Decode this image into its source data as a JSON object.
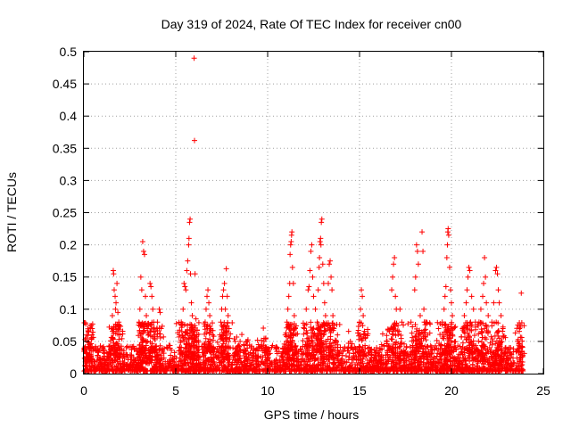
{
  "chart_data": {
    "type": "scatter",
    "title": "Day 319 of 2024, Rate Of TEC Index for receiver cn00",
    "xlabel": "GPS time / hours",
    "ylabel": "ROTI / TECUs",
    "xlim": [
      0,
      25
    ],
    "ylim": [
      0,
      0.5
    ],
    "xticks": [
      "0",
      "5",
      "10",
      "15",
      "20",
      "25"
    ],
    "xtick_values": [
      0,
      5,
      10,
      15,
      20,
      25
    ],
    "yticks": [
      "0",
      "0.05",
      "0.1",
      "0.15",
      "0.2",
      "0.25",
      "0.3",
      "0.35",
      "0.4",
      "0.45",
      "0.5"
    ],
    "ytick_values": [
      0,
      0.05,
      0.1,
      0.15,
      0.2,
      0.25,
      0.3,
      0.35,
      0.4,
      0.45,
      0.5
    ],
    "grid": true,
    "marker": "+",
    "color": "#ff0000",
    "series": [
      {
        "name": "ROTI",
        "points": [
          [
            0.1,
            0.055
          ],
          [
            0.15,
            0.06
          ],
          [
            0.2,
            0.05
          ],
          [
            0.25,
            0.065
          ],
          [
            0.3,
            0.045
          ],
          [
            0.35,
            0.07
          ],
          [
            0.4,
            0.055
          ],
          [
            0.45,
            0.07
          ],
          [
            1.5,
            0.07
          ],
          [
            1.55,
            0.09
          ],
          [
            1.6,
            0.16
          ],
          [
            1.62,
            0.155
          ],
          [
            1.65,
            0.13
          ],
          [
            1.7,
            0.12
          ],
          [
            1.72,
            0.1
          ],
          [
            1.75,
            0.11
          ],
          [
            1.8,
            0.14
          ],
          [
            1.85,
            0.095
          ],
          [
            1.9,
            0.08
          ],
          [
            1.95,
            0.06
          ],
          [
            3.0,
            0.08
          ],
          [
            3.05,
            0.1
          ],
          [
            3.1,
            0.15
          ],
          [
            3.15,
            0.13
          ],
          [
            3.2,
            0.205
          ],
          [
            3.25,
            0.19
          ],
          [
            3.3,
            0.185
          ],
          [
            3.35,
            0.12
          ],
          [
            3.4,
            0.09
          ],
          [
            3.45,
            0.07
          ],
          [
            3.6,
            0.14
          ],
          [
            3.65,
            0.135
          ],
          [
            3.7,
            0.12
          ],
          [
            3.75,
            0.1
          ],
          [
            3.8,
            0.08
          ],
          [
            3.85,
            0.06
          ],
          [
            4.0,
            0.08
          ],
          [
            4.1,
            0.1
          ],
          [
            4.15,
            0.095
          ],
          [
            4.2,
            0.07
          ],
          [
            5.2,
            0.06
          ],
          [
            5.3,
            0.08
          ],
          [
            5.4,
            0.1
          ],
          [
            5.45,
            0.14
          ],
          [
            5.5,
            0.135
          ],
          [
            5.55,
            0.13
          ],
          [
            5.6,
            0.16
          ],
          [
            5.65,
            0.175
          ],
          [
            5.7,
            0.2
          ],
          [
            5.72,
            0.21
          ],
          [
            5.75,
            0.235
          ],
          [
            5.78,
            0.24
          ],
          [
            5.8,
            0.155
          ],
          [
            5.85,
            0.11
          ],
          [
            5.9,
            0.09
          ],
          [
            5.95,
            0.065
          ],
          [
            6.0,
            0.49
          ],
          [
            6.02,
            0.362
          ],
          [
            6.05,
            0.155
          ],
          [
            6.1,
            0.085
          ],
          [
            6.15,
            0.06
          ],
          [
            6.6,
            0.08
          ],
          [
            6.65,
            0.1
          ],
          [
            6.7,
            0.12
          ],
          [
            6.75,
            0.13
          ],
          [
            6.8,
            0.11
          ],
          [
            6.85,
            0.09
          ],
          [
            6.9,
            0.07
          ],
          [
            7.0,
            0.06
          ],
          [
            7.4,
            0.06
          ],
          [
            7.45,
            0.08
          ],
          [
            7.5,
            0.1
          ],
          [
            7.55,
            0.12
          ],
          [
            7.6,
            0.13
          ],
          [
            7.65,
            0.14
          ],
          [
            7.7,
            0.1
          ],
          [
            7.75,
            0.163
          ],
          [
            7.8,
            0.12
          ],
          [
            7.85,
            0.09
          ],
          [
            7.9,
            0.07
          ],
          [
            8.3,
            0.04
          ],
          [
            8.5,
            0.05
          ],
          [
            8.7,
            0.045
          ],
          [
            8.9,
            0.05
          ],
          [
            9.1,
            0.04
          ],
          [
            9.5,
            0.045
          ],
          [
            9.8,
            0.05
          ],
          [
            9.9,
            0.055
          ],
          [
            11.0,
            0.06
          ],
          [
            11.05,
            0.08
          ],
          [
            11.1,
            0.1
          ],
          [
            11.15,
            0.12
          ],
          [
            11.2,
            0.14
          ],
          [
            11.22,
            0.185
          ],
          [
            11.25,
            0.2
          ],
          [
            11.28,
            0.205
          ],
          [
            11.3,
            0.215
          ],
          [
            11.32,
            0.22
          ],
          [
            11.35,
            0.165
          ],
          [
            11.4,
            0.14
          ],
          [
            11.45,
            0.09
          ],
          [
            11.5,
            0.07
          ],
          [
            12.0,
            0.07
          ],
          [
            12.1,
            0.1
          ],
          [
            12.2,
            0.13
          ],
          [
            12.25,
            0.135
          ],
          [
            12.3,
            0.16
          ],
          [
            12.35,
            0.19
          ],
          [
            12.4,
            0.2
          ],
          [
            12.45,
            0.15
          ],
          [
            12.5,
            0.12
          ],
          [
            12.6,
            0.1
          ],
          [
            12.7,
            0.08
          ],
          [
            12.75,
            0.13
          ],
          [
            12.8,
            0.165
          ],
          [
            12.82,
            0.18
          ],
          [
            12.85,
            0.205
          ],
          [
            12.88,
            0.21
          ],
          [
            12.9,
            0.2
          ],
          [
            12.92,
            0.235
          ],
          [
            12.95,
            0.24
          ],
          [
            13.0,
            0.17
          ],
          [
            13.05,
            0.14
          ],
          [
            13.1,
            0.11
          ],
          [
            13.15,
            0.09
          ],
          [
            13.3,
            0.14
          ],
          [
            13.35,
            0.17
          ],
          [
            13.4,
            0.175
          ],
          [
            13.45,
            0.15
          ],
          [
            13.5,
            0.13
          ],
          [
            13.55,
            0.09
          ],
          [
            13.6,
            0.07
          ],
          [
            13.8,
            0.06
          ],
          [
            14.5,
            0.05
          ],
          [
            15.0,
            0.08
          ],
          [
            15.05,
            0.1
          ],
          [
            15.1,
            0.13
          ],
          [
            15.15,
            0.12
          ],
          [
            15.2,
            0.09
          ],
          [
            15.3,
            0.06
          ],
          [
            16.2,
            0.045
          ],
          [
            16.5,
            0.05
          ],
          [
            16.7,
            0.07
          ],
          [
            16.75,
            0.13
          ],
          [
            16.8,
            0.15
          ],
          [
            16.85,
            0.17
          ],
          [
            16.9,
            0.18
          ],
          [
            16.95,
            0.12
          ],
          [
            17.0,
            0.1
          ],
          [
            17.2,
            0.1
          ],
          [
            17.3,
            0.08
          ],
          [
            17.8,
            0.08
          ],
          [
            18.0,
            0.13
          ],
          [
            18.05,
            0.15
          ],
          [
            18.1,
            0.2
          ],
          [
            18.15,
            0.19
          ],
          [
            18.2,
            0.17
          ],
          [
            18.3,
            0.09
          ],
          [
            18.4,
            0.22
          ],
          [
            18.45,
            0.19
          ],
          [
            18.5,
            0.1
          ],
          [
            18.6,
            0.08
          ],
          [
            18.7,
            0.06
          ],
          [
            19.3,
            0.07
          ],
          [
            19.5,
            0.08
          ],
          [
            19.6,
            0.1
          ],
          [
            19.65,
            0.12
          ],
          [
            19.7,
            0.135
          ],
          [
            19.75,
            0.18
          ],
          [
            19.78,
            0.2
          ],
          [
            19.8,
            0.22
          ],
          [
            19.82,
            0.225
          ],
          [
            19.85,
            0.215
          ],
          [
            19.9,
            0.165
          ],
          [
            19.95,
            0.13
          ],
          [
            20.0,
            0.11
          ],
          [
            20.05,
            0.09
          ],
          [
            20.1,
            0.07
          ],
          [
            20.6,
            0.07
          ],
          [
            20.7,
            0.09
          ],
          [
            20.8,
            0.11
          ],
          [
            20.85,
            0.13
          ],
          [
            20.9,
            0.15
          ],
          [
            20.95,
            0.165
          ],
          [
            21.0,
            0.16
          ],
          [
            21.1,
            0.12
          ],
          [
            21.2,
            0.1
          ],
          [
            21.3,
            0.08
          ],
          [
            21.5,
            0.08
          ],
          [
            21.6,
            0.1
          ],
          [
            21.7,
            0.12
          ],
          [
            21.75,
            0.14
          ],
          [
            21.8,
            0.18
          ],
          [
            21.85,
            0.15
          ],
          [
            21.9,
            0.11
          ],
          [
            22.0,
            0.09
          ],
          [
            22.2,
            0.08
          ],
          [
            22.3,
            0.11
          ],
          [
            22.4,
            0.16
          ],
          [
            22.45,
            0.165
          ],
          [
            22.5,
            0.155
          ],
          [
            22.55,
            0.13
          ],
          [
            22.6,
            0.11
          ],
          [
            22.7,
            0.09
          ],
          [
            22.8,
            0.07
          ],
          [
            23.6,
            0.05
          ],
          [
            23.7,
            0.07
          ],
          [
            23.75,
            0.075
          ],
          [
            23.8,
            0.125
          ]
        ]
      }
    ],
    "baseline_noise": {
      "x_range": [
        0,
        23.9
      ],
      "typical_y_max": 0.04
    }
  }
}
